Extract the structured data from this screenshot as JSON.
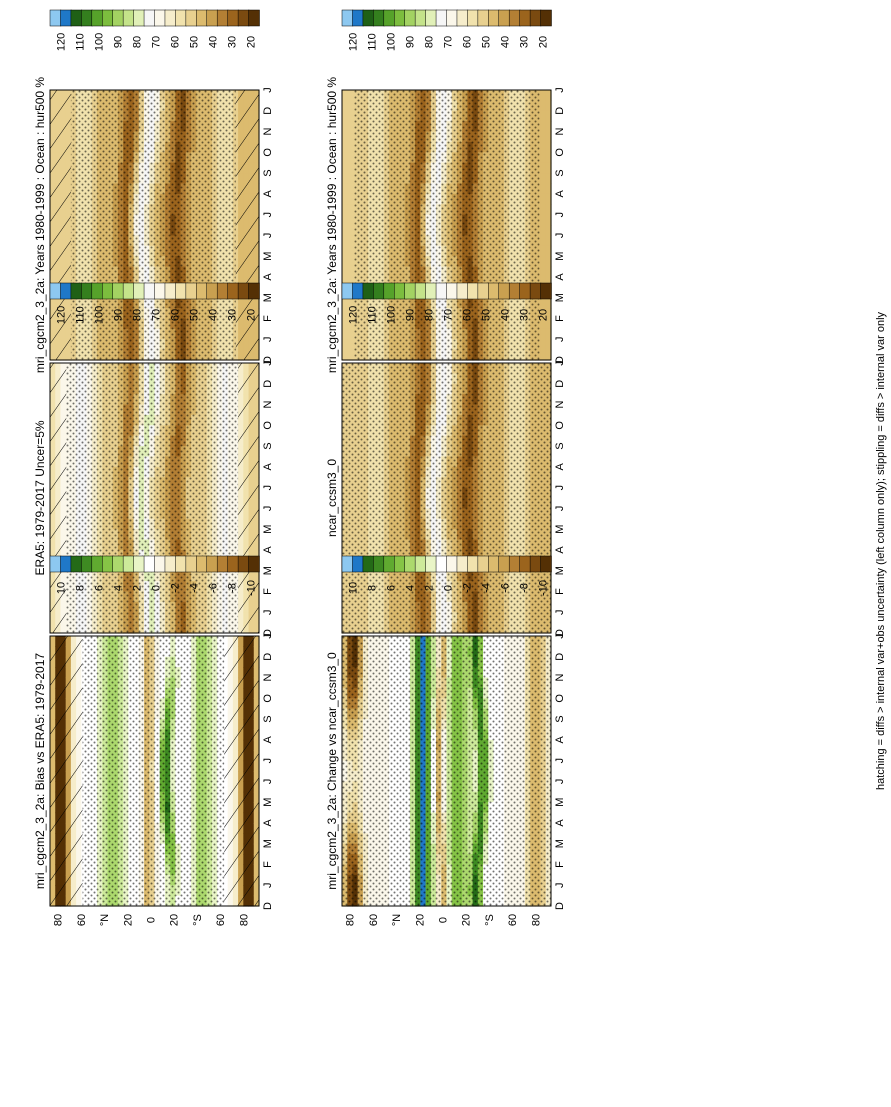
{
  "caption": "hatching = diffs > internal var+obs uncertainty (left column only); stippling = diffs > internal var only",
  "colors": {
    "abs_palette": [
      "#543005",
      "#7a4a10",
      "#9b641d",
      "#b37f34",
      "#c9a050",
      "#dcbb6e",
      "#e8d08f",
      "#f1e2ad",
      "#f6edcb",
      "#fbf7ea",
      "#f6f6f6",
      "#e1f0b8",
      "#c4e38a",
      "#a3d262",
      "#7cbd3e",
      "#56a22a",
      "#347f1e",
      "#1f6016",
      "#1f78c8",
      "#8dc8f0"
    ],
    "diff_palette": [
      "#543005",
      "#7a4a10",
      "#9b641d",
      "#b37f34",
      "#c9a050",
      "#dcbb6e",
      "#e8d08f",
      "#f1e2ad",
      "#f6edcb",
      "#fbf7ea",
      "#ffffff",
      "#e9f5c7",
      "#cdea9a",
      "#acd96d",
      "#86c446",
      "#60aa30",
      "#3e8a22",
      "#246a17",
      "#1f78c8",
      "#8dc8f0"
    ]
  },
  "chart_data": [
    {
      "type": "heatmap",
      "title": "mri_cgcm2_3_2a: Years 1980-1999 : Ocean : hur500 %",
      "x": [
        "D",
        "J",
        "F",
        "M",
        "A",
        "M",
        "J",
        "J",
        "A",
        "S",
        "O",
        "N",
        "D",
        "J"
      ],
      "y_ticks": [
        "80",
        "60",
        "°N",
        "20",
        "0",
        "20",
        "°S",
        "60",
        "80"
      ],
      "colorbar_ticks": [
        "120",
        "110",
        "100",
        "90",
        "80",
        "70",
        "60",
        "50",
        "40",
        "30",
        "20"
      ],
      "kind": "abs",
      "hatch": [
        [
          0,
          18
        ],
        [
          160,
          180
        ]
      ],
      "stipple": [
        [
          18,
          160
        ]
      ]
    },
    {
      "type": "heatmap",
      "title": "mri_cgcm2_3_2a: Years 1980-1999 : Ocean : hur500 %",
      "x": [
        "D",
        "J",
        "F",
        "M",
        "A",
        "M",
        "J",
        "J",
        "A",
        "S",
        "O",
        "N",
        "D",
        "J"
      ],
      "y_ticks": [
        "80",
        "60",
        "°N",
        "20",
        "0",
        "20",
        "°S",
        "60",
        "80"
      ],
      "colorbar_ticks": [
        "120",
        "110",
        "100",
        "90",
        "80",
        "70",
        "60",
        "50",
        "40",
        "30",
        "20"
      ],
      "kind": "abs",
      "hatch": [],
      "stipple": [
        [
          10,
          170
        ]
      ]
    },
    {
      "type": "heatmap",
      "title": "ERA5: 1979-2017 Uncer=5%",
      "x": [
        "D",
        "J",
        "F",
        "M",
        "A",
        "M",
        "J",
        "J",
        "A",
        "S",
        "O",
        "N",
        "D",
        "J"
      ],
      "y_ticks": [
        "80",
        "60",
        "°N",
        "20",
        "0",
        "20",
        "°S",
        "60",
        "80"
      ],
      "colorbar_ticks": [
        "120",
        "110",
        "100",
        "90",
        "80",
        "70",
        "60",
        "50",
        "40",
        "30",
        "20"
      ],
      "kind": "era",
      "hatch": [
        [
          0,
          14
        ],
        [
          162,
          180
        ]
      ],
      "stipple": [
        [
          14,
          162
        ]
      ]
    },
    {
      "type": "heatmap",
      "title": "ncar_ccsm3_0",
      "x": [
        "D",
        "J",
        "F",
        "M",
        "A",
        "M",
        "J",
        "J",
        "A",
        "S",
        "O",
        "N",
        "D",
        "J"
      ],
      "y_ticks": [
        "80",
        "60",
        "°N",
        "20",
        "0",
        "20",
        "°S",
        "60",
        "80"
      ],
      "colorbar_ticks": [
        "120",
        "110",
        "100",
        "90",
        "80",
        "70",
        "60",
        "50",
        "40",
        "30",
        "20"
      ],
      "kind": "abs",
      "hatch": [],
      "stipple": [
        [
          0,
          180
        ]
      ]
    },
    {
      "type": "heatmap",
      "title": "mri_cgcm2_3_2a: Bias vs ERA5: 1979-2017",
      "x": [
        "D",
        "J",
        "F",
        "M",
        "A",
        "M",
        "J",
        "J",
        "A",
        "S",
        "O",
        "N",
        "D",
        "J"
      ],
      "y_ticks": [
        "80",
        "60",
        "°N",
        "20",
        "0",
        "20",
        "°S",
        "60",
        "80"
      ],
      "colorbar_ticks": [
        "10",
        "8",
        "6",
        "4",
        "2",
        "0",
        "-2",
        "-4",
        "-6",
        "-8",
        "-10"
      ],
      "kind": "bias",
      "hatch": [
        [
          0,
          28
        ],
        [
          150,
          180
        ]
      ],
      "stipple": [
        [
          28,
          150
        ]
      ]
    },
    {
      "type": "heatmap",
      "title": "mri_cgcm2_3_2a: Change vs ncar_ccsm3_0",
      "x": [
        "D",
        "J",
        "F",
        "M",
        "A",
        "M",
        "J",
        "J",
        "A",
        "S",
        "O",
        "N",
        "D",
        "J"
      ],
      "y_ticks": [
        "80",
        "60",
        "°N",
        "20",
        "0",
        "20",
        "°S",
        "60",
        "80"
      ],
      "colorbar_ticks": [
        "10",
        "8",
        "6",
        "4",
        "2",
        "0",
        "-2",
        "-4",
        "-6",
        "-8",
        "-10"
      ],
      "kind": "change",
      "hatch": [],
      "stipple": [
        [
          0,
          180
        ]
      ]
    }
  ]
}
